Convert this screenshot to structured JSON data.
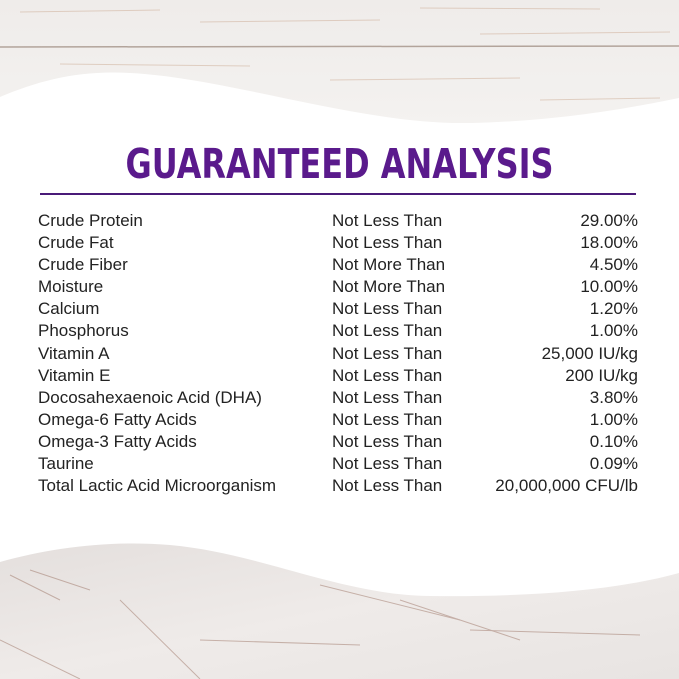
{
  "colors": {
    "title": "#5a1a8c",
    "rule": "#4a1a78",
    "text": "#222222",
    "wood": "#ece8e6"
  },
  "title": "GUARANTEED ANALYSIS",
  "rows": [
    {
      "nutrient": "Crude Protein",
      "qualifier": "Not Less Than",
      "value": "29.00%"
    },
    {
      "nutrient": "Crude Fat",
      "qualifier": "Not Less Than",
      "value": "18.00%"
    },
    {
      "nutrient": "Crude Fiber",
      "qualifier": "Not More Than",
      "value": "4.50%"
    },
    {
      "nutrient": "Moisture",
      "qualifier": "Not More Than",
      "value": "10.00%"
    },
    {
      "nutrient": "Calcium",
      "qualifier": "Not Less Than",
      "value": "1.20%"
    },
    {
      "nutrient": "Phosphorus",
      "qualifier": "Not Less Than",
      "value": "1.00%"
    },
    {
      "nutrient": "Vitamin A",
      "qualifier": "Not Less Than",
      "value": "25,000 IU/kg"
    },
    {
      "nutrient": "Vitamin E",
      "qualifier": "Not Less Than",
      "value": "200 IU/kg"
    },
    {
      "nutrient": "Docosahexaenoic Acid (DHA)",
      "qualifier": "Not Less Than",
      "value": "3.80%"
    },
    {
      "nutrient": "Omega-6 Fatty Acids",
      "qualifier": "Not Less Than",
      "value": "1.00%"
    },
    {
      "nutrient": "Omega-3 Fatty Acids",
      "qualifier": "Not Less Than",
      "value": "0.10%"
    },
    {
      "nutrient": "Taurine",
      "qualifier": "Not Less Than",
      "value": "0.09%"
    },
    {
      "nutrient": "Total Lactic Acid Microorganism",
      "qualifier": "Not Less Than",
      "value": "20,000,000 CFU/lb"
    }
  ]
}
